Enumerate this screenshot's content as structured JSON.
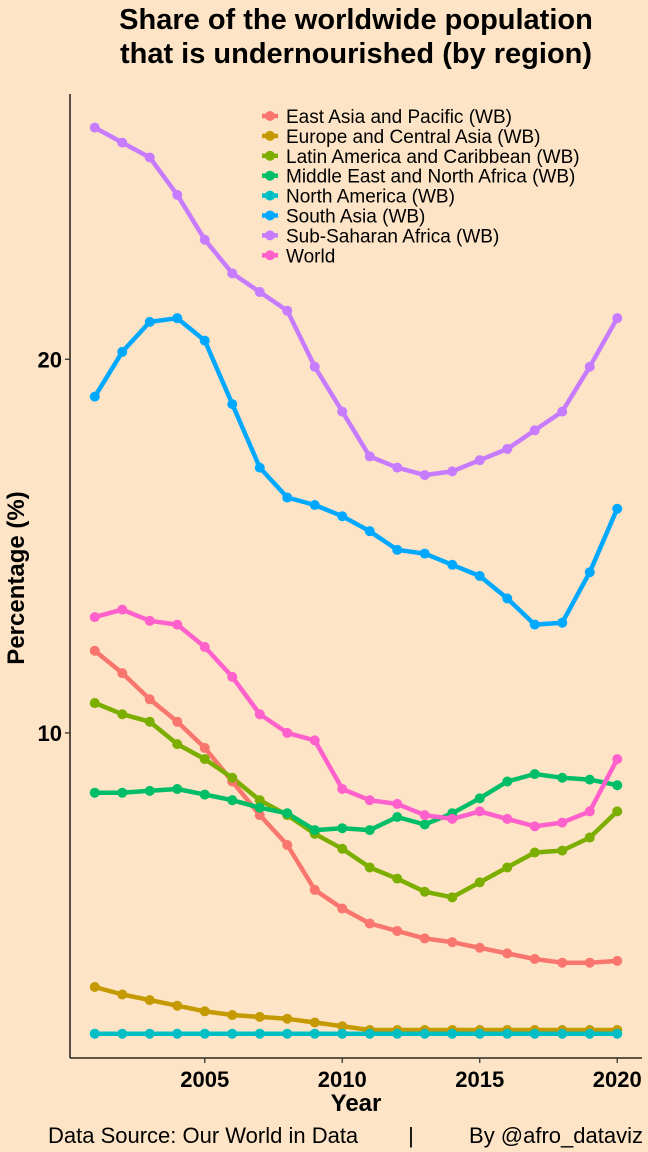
{
  "chart_data": {
    "type": "line",
    "title": [
      "Share of the worldwide population",
      "that is undernourished (by region)"
    ],
    "xlabel": "Year",
    "ylabel": "Percentage (%)",
    "x_ticks": [
      2005,
      2010,
      2015,
      2020
    ],
    "y_ticks": [
      10,
      20
    ],
    "xlim": [
      2000.1,
      2020.9
    ],
    "ylim": [
      1.3,
      27.1
    ],
    "grid": false,
    "legend_position": "top-right",
    "x": [
      2001,
      2002,
      2003,
      2004,
      2005,
      2006,
      2007,
      2008,
      2009,
      2010,
      2011,
      2012,
      2013,
      2014,
      2015,
      2016,
      2017,
      2018,
      2019,
      2020
    ],
    "series": [
      {
        "name": "East Asia and Pacific (WB)",
        "color": "#f8766d",
        "values": [
          12.2,
          11.6,
          10.9,
          10.3,
          9.6,
          8.7,
          7.8,
          7.0,
          5.8,
          5.3,
          4.9,
          4.7,
          4.5,
          4.4,
          4.25,
          4.1,
          3.95,
          3.85,
          3.85,
          3.9
        ]
      },
      {
        "name": "Europe and Central Asia (WB)",
        "color": "#c49a00",
        "values": [
          3.2,
          3.0,
          2.85,
          2.7,
          2.55,
          2.45,
          2.4,
          2.35,
          2.25,
          2.15,
          2.05,
          2.05,
          2.05,
          2.05,
          2.05,
          2.05,
          2.05,
          2.05,
          2.05,
          2.05
        ]
      },
      {
        "name": "Latin America and Caribbean (WB)",
        "color": "#7cae00",
        "values": [
          10.8,
          10.5,
          10.3,
          9.7,
          9.3,
          8.8,
          8.2,
          7.8,
          7.3,
          6.9,
          6.4,
          6.1,
          5.75,
          5.6,
          6.0,
          6.4,
          6.8,
          6.85,
          7.2,
          7.9
        ]
      },
      {
        "name": "Middle East and North Africa (WB)",
        "color": "#00be67",
        "values": [
          8.4,
          8.4,
          8.45,
          8.5,
          8.35,
          8.2,
          8.0,
          7.85,
          7.4,
          7.45,
          7.4,
          7.75,
          7.55,
          7.85,
          8.25,
          8.7,
          8.9,
          8.8,
          8.75,
          8.6
        ]
      },
      {
        "name": "North America (WB)",
        "color": "#00bfc4",
        "values": [
          1.95,
          1.95,
          1.95,
          1.95,
          1.95,
          1.95,
          1.95,
          1.95,
          1.95,
          1.95,
          1.95,
          1.95,
          1.95,
          1.95,
          1.95,
          1.95,
          1.95,
          1.95,
          1.95,
          1.95
        ]
      },
      {
        "name": "South Asia (WB)",
        "color": "#00a9ff",
        "values": [
          19.0,
          20.2,
          21.0,
          21.1,
          20.5,
          18.8,
          17.1,
          16.3,
          16.1,
          15.8,
          15.4,
          14.9,
          14.8,
          14.5,
          14.2,
          13.6,
          12.9,
          12.95,
          14.3,
          16.0
        ]
      },
      {
        "name": "Sub-Saharan Africa (WB)",
        "color": "#c77cff",
        "values": [
          26.2,
          25.8,
          25.4,
          24.4,
          23.2,
          22.3,
          21.8,
          21.3,
          19.8,
          18.6,
          17.4,
          17.1,
          16.9,
          17.0,
          17.3,
          17.6,
          18.1,
          18.6,
          19.8,
          21.1
        ]
      },
      {
        "name": "World",
        "color": "#ff61cc",
        "values": [
          13.1,
          13.3,
          13.0,
          12.9,
          12.3,
          11.5,
          10.5,
          10.0,
          9.8,
          8.5,
          8.2,
          8.1,
          7.8,
          7.7,
          7.9,
          7.7,
          7.5,
          7.6,
          7.9,
          9.3
        ]
      }
    ]
  },
  "caption": {
    "source": "Data Source: Our World in Data",
    "separator": "|",
    "author": "By @afro_dataviz"
  }
}
